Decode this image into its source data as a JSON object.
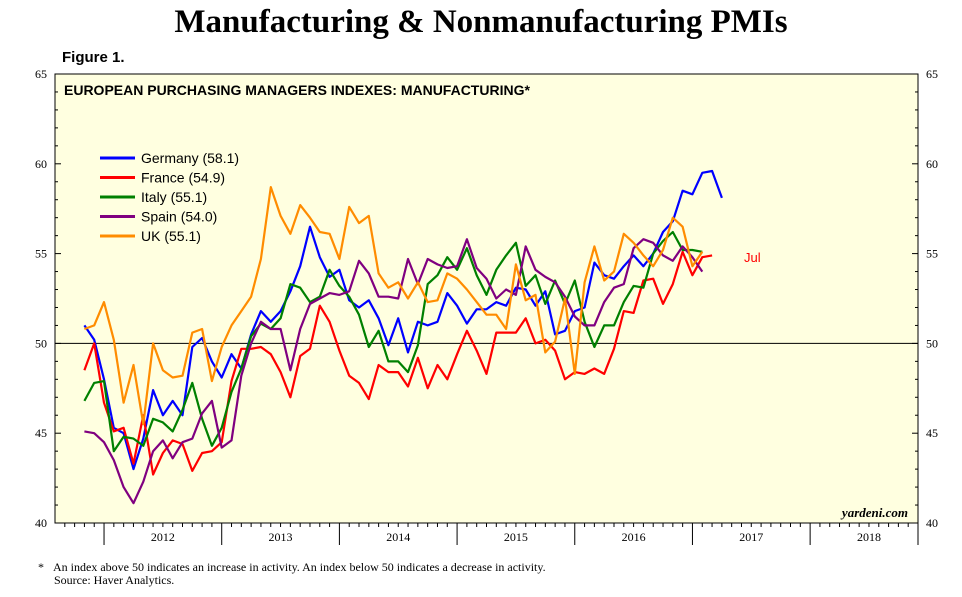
{
  "title": "Manufacturing & Nonmanufacturing PMIs",
  "figure_label": "Figure 1.",
  "footnote": {
    "marker": "*",
    "note": "An index above 50 indicates an increase in activity. An index below 50 indicates a decrease in activity.",
    "source": "Source: Haver Analytics."
  },
  "chart_data": {
    "type": "line",
    "title": "EUROPEAN PURCHASING MANAGERS INDEXES: MANUFACTURING*",
    "watermark": "yardeni.com",
    "x_start": "2011-11",
    "x_range": [
      "2011-08",
      "2018-12"
    ],
    "ylim": [
      40,
      65
    ],
    "y_ticks": [
      40,
      45,
      50,
      55,
      60,
      65
    ],
    "reference_line": 50,
    "x_tick_labels": [
      "2012",
      "2013",
      "2014",
      "2015",
      "2016",
      "2017",
      "2018"
    ],
    "end_annotation": "Jul",
    "legend_position": "top-left",
    "background_color": "#ffffe0",
    "series": [
      {
        "name": "Germany (58.1)",
        "color": "#0000ff",
        "values": [
          51.0,
          50.2,
          48.0,
          45.3,
          45.0,
          43.0,
          44.7,
          47.4,
          46.0,
          46.8,
          46.0,
          49.8,
          50.3,
          49.0,
          48.1,
          49.4,
          48.6,
          50.5,
          51.8,
          51.2,
          51.8,
          52.9,
          54.3,
          56.5,
          54.8,
          53.7,
          54.1,
          52.4,
          52.0,
          52.4,
          51.4,
          49.9,
          51.4,
          49.5,
          51.2,
          51.0,
          51.2,
          52.8,
          52.1,
          51.1,
          51.9,
          51.9,
          52.3,
          52.1,
          53.1,
          53.0,
          52.1,
          52.9,
          50.5,
          50.7,
          51.8,
          52.0,
          54.5,
          53.8,
          53.6,
          54.3,
          54.9,
          54.3,
          55.0,
          56.2,
          56.8,
          58.5,
          58.3,
          59.5,
          59.6,
          58.1
        ]
      },
      {
        "name": "France (54.9)",
        "color": "#ff0000",
        "values": [
          48.5,
          50.0,
          46.7,
          45.1,
          45.3,
          43.3,
          46.0,
          42.7,
          43.9,
          44.6,
          44.4,
          42.9,
          43.9,
          44.0,
          44.5,
          47.9,
          49.7,
          49.7,
          49.8,
          49.4,
          48.4,
          47.0,
          49.3,
          49.7,
          52.1,
          51.2,
          49.6,
          48.2,
          47.8,
          46.9,
          48.8,
          48.4,
          48.4,
          47.6,
          49.2,
          47.5,
          48.8,
          48.0,
          49.4,
          50.7,
          49.6,
          48.3,
          50.6,
          50.6,
          50.6,
          51.4,
          50.0,
          50.2,
          49.6,
          48.0,
          48.4,
          48.3,
          48.6,
          48.3,
          49.7,
          51.8,
          51.7,
          53.5,
          53.6,
          52.2,
          53.3,
          55.1,
          53.8,
          54.8,
          54.9
        ]
      },
      {
        "name": "Italy (55.1)",
        "color": "#008000",
        "values": [
          46.8,
          47.8,
          47.9,
          44.0,
          44.8,
          44.7,
          44.3,
          45.8,
          45.6,
          45.1,
          46.3,
          47.8,
          45.8,
          44.3,
          45.3,
          47.3,
          48.6,
          50.4,
          51.1,
          50.8,
          51.4,
          53.3,
          53.1,
          52.3,
          52.6,
          54.1,
          53.2,
          52.6,
          51.6,
          49.8,
          50.7,
          49.0,
          49.0,
          48.4,
          49.9,
          53.3,
          53.8,
          54.8,
          54.1,
          55.3,
          53.8,
          52.7,
          54.1,
          54.9,
          55.6,
          53.2,
          53.8,
          52.2,
          53.5,
          52.2,
          53.5,
          51.2,
          49.8,
          51.0,
          51.0,
          52.3,
          53.2,
          53.1,
          55.0,
          55.7,
          56.2,
          55.2,
          55.2,
          55.1
        ]
      },
      {
        "name": "Spain (54.0)",
        "color": "#800080",
        "values": [
          45.1,
          45.0,
          44.5,
          43.5,
          42.0,
          41.1,
          42.3,
          44.0,
          44.6,
          43.6,
          44.5,
          44.7,
          46.1,
          46.8,
          44.2,
          44.6,
          48.2,
          50.0,
          51.2,
          50.8,
          50.8,
          48.5,
          50.8,
          52.2,
          52.5,
          52.8,
          52.7,
          52.9,
          54.6,
          53.9,
          52.6,
          52.6,
          52.5,
          54.7,
          53.3,
          54.7,
          54.4,
          54.2,
          54.3,
          55.8,
          54.2,
          53.6,
          52.5,
          53.0,
          52.7,
          55.4,
          54.1,
          53.7,
          53.4,
          52.6,
          51.5,
          51.0,
          51.0,
          52.3,
          53.1,
          53.3,
          55.3,
          55.8,
          55.6,
          54.9,
          54.6,
          55.4,
          54.8,
          54.0
        ]
      },
      {
        "name": "UK (55.1)",
        "color": "#ff8c00",
        "values": [
          50.8,
          51.0,
          52.3,
          50.2,
          46.7,
          48.8,
          45.5,
          50.0,
          48.5,
          48.1,
          48.2,
          50.6,
          50.8,
          47.9,
          49.8,
          51.0,
          51.8,
          52.6,
          54.7,
          58.7,
          57.1,
          56.1,
          57.7,
          57.0,
          56.2,
          56.1,
          54.7,
          57.6,
          56.7,
          57.1,
          53.9,
          53.1,
          53.4,
          52.5,
          53.4,
          52.3,
          52.4,
          53.9,
          53.6,
          53.0,
          52.3,
          51.6,
          51.6,
          50.8,
          54.4,
          52.4,
          52.7,
          49.5,
          50.1,
          52.5,
          48.3,
          53.4,
          55.4,
          53.5,
          54.0,
          56.1,
          55.6,
          54.9,
          54.3,
          55.2,
          57.0,
          56.5,
          54.3,
          55.1
        ]
      }
    ]
  }
}
